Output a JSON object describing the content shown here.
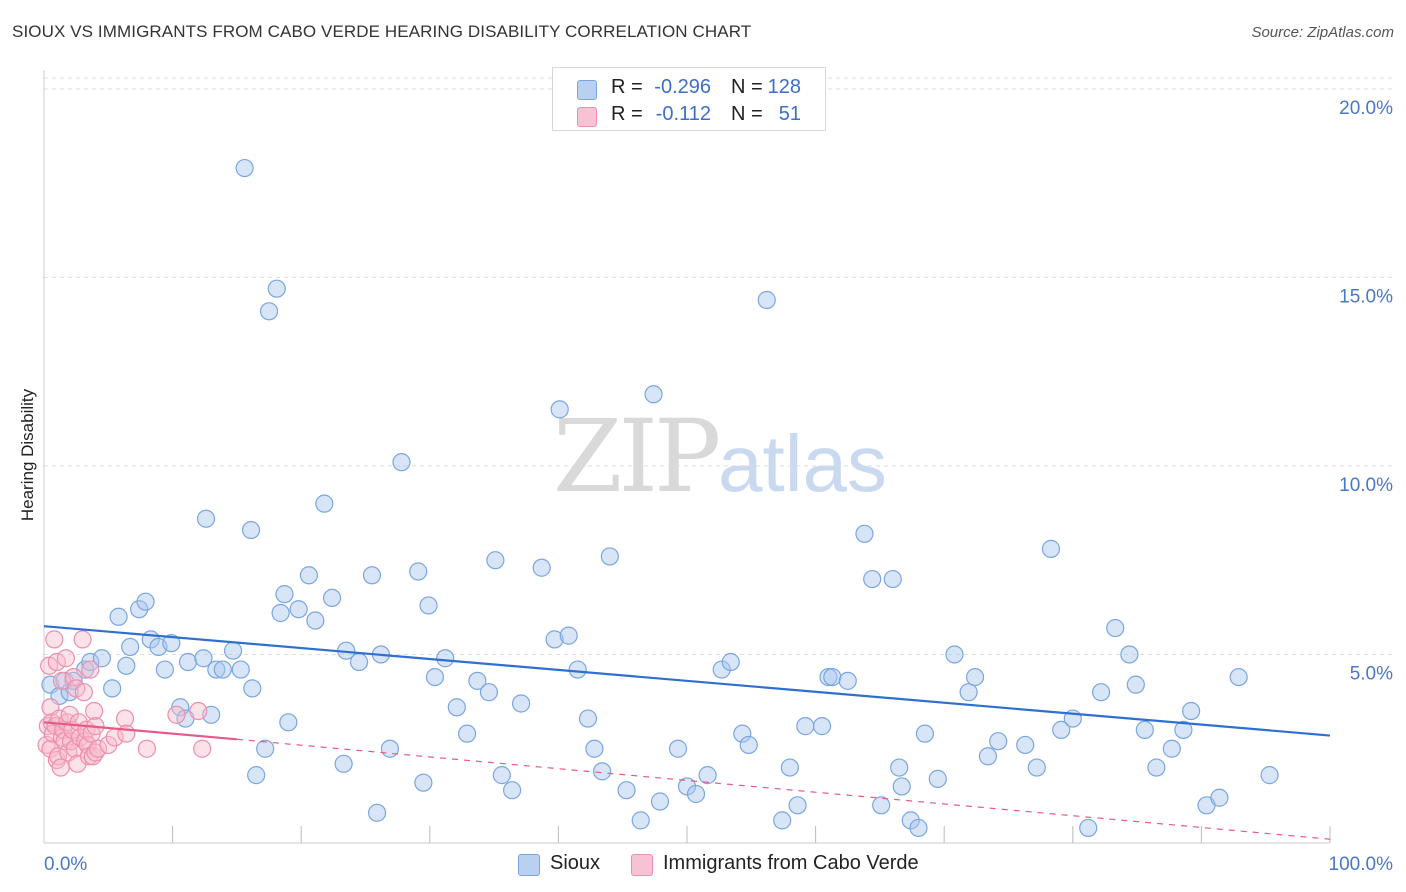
{
  "header": {
    "title": "SIOUX VS IMMIGRANTS FROM CABO VERDE HEARING DISABILITY CORRELATION CHART",
    "source": "Source: ZipAtlas.com"
  },
  "watermark": {
    "zip": "ZIP",
    "atlas": "atlas"
  },
  "legend": {
    "r_label": "R =",
    "n_label": "N =",
    "rows": [
      {
        "r": "-0.296",
        "n": "128",
        "color": "#b8d1f3"
      },
      {
        "r": "-0.112",
        "n": "51",
        "color": "#f7c2d3"
      }
    ]
  },
  "bottom_legend": {
    "series1": "Sioux",
    "series2": "Immigrants from Cabo Verde"
  },
  "colors": {
    "blue_fill": "#a9c6ee",
    "blue_stroke": "#7aa6e0",
    "blue_line": "#2f6fcf",
    "pink_fill": "#f6bccd",
    "pink_stroke": "#ee8fad",
    "pink_line": "#e55a88",
    "grid": "#dddddd",
    "axis_text": "#4a78c9"
  },
  "chart_data": {
    "type": "scatter",
    "title": "SIOUX VS IMMIGRANTS FROM CABO VERDE HEARING DISABILITY CORRELATION CHART",
    "xlabel": "",
    "ylabel": "Hearing Disability",
    "xlim": [
      0,
      100
    ],
    "ylim": [
      0,
      20.5
    ],
    "x_tick_labels": [
      "0.0%",
      "100.0%"
    ],
    "y_ticks": [
      5,
      10,
      15,
      20
    ],
    "y_tick_labels": [
      "5.0%",
      "10.0%",
      "15.0%",
      "20.0%"
    ],
    "series": [
      {
        "name": "Sioux",
        "r": -0.296,
        "n": 128,
        "trend": {
          "x": [
            0,
            100
          ],
          "y": [
            5.75,
            2.85
          ]
        },
        "x": [
          0.5,
          1.2,
          1.6,
          2.0,
          2.3,
          3.2,
          3.6,
          4.5,
          5.3,
          5.8,
          6.4,
          6.7,
          7.4,
          7.9,
          8.3,
          8.9,
          9.4,
          9.9,
          10.6,
          11.0,
          11.2,
          12.4,
          12.6,
          13.0,
          13.4,
          13.9,
          14.7,
          15.3,
          15.6,
          16.1,
          16.2,
          16.5,
          17.2,
          17.5,
          18.1,
          18.4,
          18.7,
          19.0,
          19.8,
          20.6,
          21.1,
          21.8,
          22.4,
          23.3,
          23.5,
          24.5,
          25.5,
          25.9,
          26.2,
          26.9,
          27.8,
          29.1,
          29.5,
          29.9,
          30.4,
          31.2,
          32.1,
          32.9,
          33.7,
          34.6,
          35.1,
          35.6,
          36.4,
          37.1,
          38.7,
          39.7,
          40.1,
          40.8,
          41.5,
          42.3,
          42.8,
          43.4,
          44.0,
          45.3,
          46.4,
          47.4,
          47.9,
          49.3,
          50.0,
          50.7,
          51.6,
          52.7,
          53.4,
          54.3,
          54.8,
          56.2,
          57.4,
          58.0,
          58.6,
          59.2,
          60.5,
          61.0,
          61.3,
          62.5,
          63.8,
          64.4,
          65.1,
          66.0,
          66.5,
          66.7,
          67.4,
          68.0,
          68.5,
          69.5,
          70.8,
          71.9,
          72.4,
          73.4,
          74.2,
          76.3,
          77.2,
          78.3,
          79.1,
          80.0,
          81.2,
          82.2,
          83.3,
          84.4,
          84.9,
          85.6,
          86.5,
          87.7,
          88.6,
          89.2,
          90.4,
          91.4,
          92.9,
          95.3
        ],
        "y": [
          4.2,
          3.9,
          4.3,
          4.0,
          4.3,
          4.6,
          4.8,
          4.9,
          4.1,
          6.0,
          4.7,
          5.2,
          6.2,
          6.4,
          5.4,
          5.2,
          4.6,
          5.3,
          3.6,
          3.3,
          4.8,
          4.9,
          8.6,
          3.4,
          4.6,
          4.6,
          5.1,
          4.6,
          17.9,
          8.3,
          4.1,
          1.8,
          2.5,
          14.1,
          14.7,
          6.1,
          6.6,
          3.2,
          6.2,
          7.1,
          5.9,
          9.0,
          6.5,
          2.1,
          5.1,
          4.8,
          7.1,
          0.8,
          5.0,
          2.5,
          10.1,
          7.2,
          1.6,
          6.3,
          4.4,
          4.9,
          3.6,
          2.9,
          4.3,
          4.0,
          7.5,
          1.8,
          1.4,
          3.7,
          7.3,
          5.4,
          11.5,
          5.5,
          4.6,
          3.3,
          2.5,
          1.9,
          7.6,
          1.4,
          0.6,
          11.9,
          1.1,
          2.5,
          1.5,
          1.3,
          1.8,
          4.6,
          4.8,
          2.9,
          2.6,
          14.4,
          0.6,
          2.0,
          1.0,
          3.1,
          3.1,
          4.4,
          4.4,
          4.3,
          8.2,
          7.0,
          1.0,
          7.0,
          2.0,
          1.5,
          0.6,
          0.4,
          2.9,
          1.7,
          5.0,
          4.0,
          4.4,
          2.3,
          2.7,
          2.6,
          2.0,
          7.8,
          3.0,
          3.3,
          0.4,
          4.0,
          5.7,
          5.0,
          4.2,
          3.0,
          2.0,
          2.5,
          3.0,
          3.5,
          1.0,
          1.2,
          4.4,
          1.8
        ]
      },
      {
        "name": "Immigrants from Cabo Verde",
        "r": -0.112,
        "n": 51,
        "trend": {
          "x": [
            0,
            15,
            100
          ],
          "y": [
            3.2,
            2.75,
            0.1
          ]
        },
        "x": [
          0.2,
          0.3,
          0.4,
          0.5,
          0.5,
          0.6,
          0.7,
          0.8,
          0.9,
          1.0,
          1.0,
          1.1,
          1.2,
          1.3,
          1.4,
          1.4,
          1.5,
          1.6,
          1.7,
          1.8,
          1.9,
          2.0,
          2.1,
          2.2,
          2.3,
          2.4,
          2.5,
          2.6,
          2.7,
          2.8,
          3.0,
          3.1,
          3.2,
          3.3,
          3.4,
          3.5,
          3.6,
          3.7,
          3.8,
          3.9,
          4.0,
          4.0,
          4.2,
          5.0,
          5.5,
          6.3,
          6.4,
          8.0,
          10.3,
          12.0,
          12.3
        ],
        "y": [
          2.6,
          3.1,
          4.7,
          3.6,
          2.5,
          3.2,
          2.9,
          5.4,
          3.1,
          2.2,
          4.8,
          2.3,
          3.3,
          2.0,
          4.3,
          2.8,
          3.0,
          2.7,
          4.9,
          3.2,
          2.4,
          3.4,
          2.7,
          3.0,
          4.4,
          2.5,
          4.1,
          2.1,
          3.2,
          2.8,
          5.4,
          4.0,
          2.7,
          3.0,
          2.6,
          2.3,
          4.6,
          2.9,
          2.3,
          3.5,
          3.1,
          2.4,
          2.5,
          2.6,
          2.8,
          3.3,
          2.9,
          2.5,
          3.4,
          3.5,
          2.5
        ]
      }
    ]
  }
}
